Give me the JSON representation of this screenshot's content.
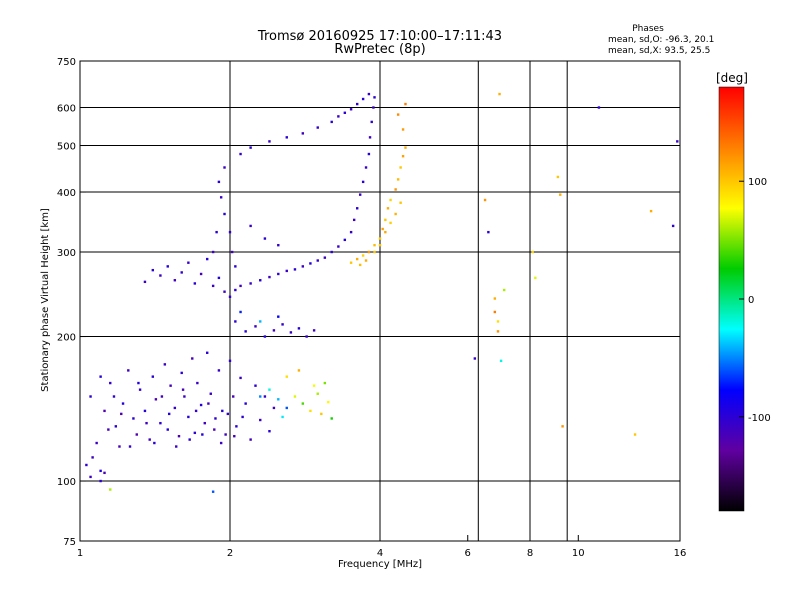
{
  "chart_data": {
    "type": "scatter",
    "title_line1": "Tromsø 20160925 17:10:00–17:11:43",
    "title_line2": "RwPretec (8p)",
    "stats": {
      "heading": "Phases",
      "line_o": "mean, sd,O: -96.3, 20.1",
      "line_x": "mean, sd,X:  93.5, 25.5"
    },
    "xlabel": "Frequency [MHz]",
    "ylabel": "Stationary phase Virtual Height [km]",
    "x_scale": "log",
    "y_scale": "log",
    "xlim": [
      1,
      16
    ],
    "ylim": [
      75,
      750
    ],
    "x_ticks": [
      1,
      2,
      4,
      6,
      8,
      10,
      16
    ],
    "x_tick_labels": [
      "1",
      "2",
      "4",
      "6",
      "8",
      "10",
      "16"
    ],
    "x_grid": [
      2,
      4,
      6.3,
      8,
      9.5
    ],
    "y_ticks": [
      75,
      100,
      200,
      300,
      400,
      500,
      600,
      750
    ],
    "y_tick_labels": [
      "75",
      "100",
      "200",
      "300",
      "400",
      "500",
      "600",
      "750"
    ],
    "y_grid": [
      100,
      200,
      300,
      400,
      500,
      600
    ],
    "grid": true,
    "colorbar": {
      "label": "[deg]",
      "range": [
        -180,
        180
      ],
      "ticks": [
        100,
        0,
        -100
      ],
      "tick_labels": [
        "100",
        "0",
        "-100"
      ],
      "colors": [
        "#ff0000",
        "#ff8000",
        "#ffff00",
        "#00cc00",
        "#00ffff",
        "#0000ff",
        "#6000a0",
        "#000000"
      ]
    },
    "series": [
      {
        "points": [
          [
            1.05,
            150,
            -100
          ],
          [
            1.08,
            120,
            -110
          ],
          [
            1.1,
            105,
            -95
          ],
          [
            1.12,
            140,
            -120
          ],
          [
            1.15,
            160,
            -105
          ],
          [
            1.18,
            130,
            -100
          ],
          [
            1.2,
            118,
            -115
          ],
          [
            1.22,
            145,
            -95
          ],
          [
            1.25,
            170,
            -110
          ],
          [
            1.28,
            135,
            -100
          ],
          [
            1.3,
            125,
            -120
          ],
          [
            1.32,
            155,
            -105
          ],
          [
            1.35,
            140,
            -98
          ],
          [
            1.38,
            122,
            -112
          ],
          [
            1.4,
            165,
            -100
          ],
          [
            1.42,
            148,
            -118
          ],
          [
            1.45,
            132,
            -102
          ],
          [
            1.48,
            175,
            -108
          ],
          [
            1.5,
            128,
            -96
          ],
          [
            1.52,
            158,
            -112
          ],
          [
            1.55,
            142,
            -104
          ],
          [
            1.58,
            124,
            -118
          ],
          [
            1.6,
            168,
            -100
          ],
          [
            1.62,
            150,
            -110
          ],
          [
            1.65,
            136,
            -96
          ],
          [
            1.68,
            180,
            -115
          ],
          [
            1.7,
            126,
            -102
          ],
          [
            1.72,
            160,
            -108
          ],
          [
            1.75,
            144,
            -98
          ],
          [
            1.78,
            132,
            -112
          ],
          [
            1.8,
            185,
            -100
          ],
          [
            1.83,
            152,
            -106
          ],
          [
            1.86,
            128,
            -118
          ],
          [
            1.9,
            170,
            -104
          ],
          [
            1.93,
            140,
            -96
          ],
          [
            1.96,
            125,
            -110
          ],
          [
            2.0,
            178,
            -102
          ],
          [
            2.03,
            150,
            -114
          ],
          [
            2.06,
            130,
            -100
          ],
          [
            2.1,
            164,
            -108
          ],
          [
            2.15,
            145,
            -96
          ],
          [
            2.2,
            122,
            -112
          ],
          [
            2.25,
            158,
            -100
          ],
          [
            2.3,
            134,
            -110
          ],
          [
            2.35,
            150,
            -104
          ],
          [
            2.4,
            127,
            -98
          ],
          [
            2.45,
            142,
            -112
          ],
          [
            1.03,
            108,
            -100
          ],
          [
            1.06,
            112,
            -108
          ],
          [
            1.1,
            165,
            -96
          ],
          [
            1.14,
            128,
            -114
          ],
          [
            1.17,
            150,
            -102
          ],
          [
            1.21,
            138,
            -118
          ],
          [
            1.26,
            118,
            -104
          ],
          [
            1.31,
            160,
            -96
          ],
          [
            1.36,
            132,
            -110
          ],
          [
            1.41,
            120,
            -100
          ],
          [
            1.46,
            150,
            -112
          ],
          [
            1.51,
            138,
            -98
          ],
          [
            1.56,
            118,
            -108
          ],
          [
            1.61,
            155,
            -116
          ],
          [
            1.66,
            122,
            -100
          ],
          [
            1.71,
            140,
            -106
          ],
          [
            1.76,
            125,
            -96
          ],
          [
            1.81,
            145,
            -112
          ],
          [
            1.87,
            135,
            -100
          ],
          [
            1.92,
            120,
            -108
          ],
          [
            1.98,
            138,
            -104
          ],
          [
            2.04,
            124,
            -114
          ],
          [
            2.12,
            136,
            -100
          ]
        ]
      },
      {
        "points": [
          [
            1.35,
            260,
            -110
          ],
          [
            1.4,
            275,
            -100
          ],
          [
            1.45,
            268,
            -108
          ],
          [
            1.5,
            280,
            -96
          ],
          [
            1.55,
            262,
            -112
          ],
          [
            1.6,
            272,
            -102
          ],
          [
            1.65,
            285,
            -106
          ],
          [
            1.7,
            258,
            -98
          ],
          [
            1.75,
            270,
            -114
          ],
          [
            1.8,
            290,
            -100
          ],
          [
            1.85,
            255,
            -108
          ],
          [
            1.9,
            265,
            -96
          ],
          [
            1.95,
            248,
            -110
          ],
          [
            2.0,
            242,
            -104
          ],
          [
            2.05,
            250,
            -100
          ],
          [
            2.1,
            255,
            -112
          ],
          [
            2.2,
            258,
            -106
          ],
          [
            2.3,
            262,
            -98
          ],
          [
            2.4,
            266,
            -110
          ],
          [
            2.5,
            270,
            -102
          ],
          [
            2.6,
            274,
            -106
          ],
          [
            2.7,
            276,
            -100
          ],
          [
            2.8,
            280,
            -108
          ],
          [
            2.9,
            284,
            -96
          ],
          [
            3.0,
            288,
            -104
          ],
          [
            3.1,
            292,
            -110
          ],
          [
            3.2,
            300,
            -100
          ],
          [
            3.3,
            308,
            -106
          ],
          [
            3.4,
            318,
            -98
          ],
          [
            3.5,
            330,
            -104
          ],
          [
            3.55,
            350,
            -110
          ],
          [
            3.6,
            370,
            -102
          ],
          [
            3.65,
            395,
            -108
          ],
          [
            3.7,
            420,
            -100
          ],
          [
            3.75,
            450,
            -106
          ],
          [
            3.8,
            480,
            -98
          ],
          [
            3.82,
            520,
            -110
          ],
          [
            3.85,
            560,
            -102
          ],
          [
            3.88,
            600,
            -108
          ],
          [
            3.9,
            630,
            -100
          ],
          [
            3.8,
            640,
            -106
          ],
          [
            3.7,
            625,
            -98
          ],
          [
            3.6,
            610,
            -104
          ],
          [
            3.5,
            595,
            -110
          ],
          [
            3.4,
            585,
            -100
          ],
          [
            3.3,
            575,
            -106
          ],
          [
            3.2,
            560,
            -98
          ],
          [
            3.0,
            545,
            -104
          ],
          [
            2.8,
            530,
            -110
          ],
          [
            2.6,
            520,
            -100
          ],
          [
            2.4,
            510,
            -106
          ],
          [
            2.2,
            495,
            -98
          ],
          [
            2.1,
            480,
            -104
          ],
          [
            1.95,
            450,
            -108
          ],
          [
            1.9,
            420,
            -100
          ],
          [
            1.92,
            390,
            -106
          ],
          [
            1.95,
            360,
            -98
          ],
          [
            2.0,
            330,
            -104
          ],
          [
            2.02,
            300,
            -110
          ],
          [
            2.05,
            280,
            -100
          ],
          [
            1.85,
            300,
            -108
          ],
          [
            1.88,
            330,
            -100
          ],
          [
            2.2,
            340,
            -106
          ],
          [
            2.35,
            320,
            -100
          ],
          [
            2.5,
            310,
            -104
          ]
        ]
      },
      {
        "points": [
          [
            3.5,
            285,
            100
          ],
          [
            3.6,
            290,
            110
          ],
          [
            3.7,
            295,
            95
          ],
          [
            3.8,
            300,
            120
          ],
          [
            3.9,
            310,
            105
          ],
          [
            4.0,
            320,
            100
          ],
          [
            4.05,
            335,
            115
          ],
          [
            4.1,
            350,
            100
          ],
          [
            4.15,
            370,
            110
          ],
          [
            4.2,
            385,
            95
          ],
          [
            4.3,
            405,
            120
          ],
          [
            4.35,
            425,
            105
          ],
          [
            4.4,
            450,
            100
          ],
          [
            4.45,
            475,
            115
          ],
          [
            4.5,
            495,
            110
          ],
          [
            4.4,
            380,
            100
          ],
          [
            4.3,
            360,
            108
          ],
          [
            4.2,
            345,
            96
          ],
          [
            4.1,
            330,
            112
          ],
          [
            4.0,
            310,
            102
          ],
          [
            3.9,
            300,
            98
          ],
          [
            3.75,
            288,
            110
          ],
          [
            3.65,
            282,
            104
          ],
          [
            4.45,
            540,
            118
          ],
          [
            4.5,
            610,
            130
          ],
          [
            4.35,
            580,
            125
          ]
        ]
      },
      {
        "points": [
          [
            2.7,
            150,
            70
          ],
          [
            2.8,
            145,
            40
          ],
          [
            2.9,
            140,
            90
          ],
          [
            3.0,
            152,
            60
          ],
          [
            3.05,
            138,
            100
          ],
          [
            3.1,
            160,
            50
          ],
          [
            3.15,
            146,
            80
          ],
          [
            3.2,
            135,
            30
          ],
          [
            2.6,
            142,
            -60
          ],
          [
            2.5,
            148,
            -40
          ],
          [
            2.4,
            155,
            -20
          ],
          [
            2.3,
            150,
            -50
          ],
          [
            2.6,
            165,
            90
          ],
          [
            2.75,
            170,
            110
          ],
          [
            2.95,
            158,
            75
          ],
          [
            2.55,
            136,
            -30
          ]
        ]
      },
      {
        "points": [
          [
            2.05,
            215,
            -100
          ],
          [
            2.15,
            205,
            -98
          ],
          [
            2.25,
            210,
            -108
          ],
          [
            2.35,
            200,
            -96
          ],
          [
            2.45,
            206,
            -110
          ],
          [
            2.55,
            212,
            -102
          ],
          [
            2.65,
            204,
            -106
          ],
          [
            2.75,
            208,
            -98
          ],
          [
            2.85,
            200,
            -104
          ],
          [
            2.95,
            206,
            -110
          ],
          [
            2.1,
            225,
            -70
          ],
          [
            2.3,
            215,
            -40
          ],
          [
            2.5,
            220,
            -80
          ]
        ]
      },
      {
        "points": [
          [
            6.5,
            385,
            120
          ],
          [
            6.6,
            330,
            -100
          ],
          [
            6.8,
            240,
            110
          ],
          [
            6.8,
            225,
            130
          ],
          [
            6.9,
            215,
            90
          ],
          [
            6.9,
            205,
            120
          ],
          [
            6.95,
            640,
            110
          ],
          [
            7.1,
            250,
            60
          ],
          [
            8.1,
            300,
            95
          ],
          [
            8.2,
            265,
            70
          ],
          [
            9.1,
            430,
            100
          ],
          [
            9.2,
            395,
            110
          ],
          [
            9.3,
            130,
            120
          ],
          [
            11.0,
            600,
            -100
          ],
          [
            13.0,
            125,
            100
          ],
          [
            14.0,
            365,
            110
          ],
          [
            15.5,
            340,
            -100
          ],
          [
            15.8,
            510,
            -105
          ],
          [
            6.2,
            180,
            -105
          ],
          [
            7.0,
            178,
            -20
          ]
        ]
      },
      {
        "points": [
          [
            1.15,
            96,
            60
          ],
          [
            1.85,
            95,
            -60
          ],
          [
            1.05,
            102,
            -110
          ],
          [
            1.1,
            100,
            -100
          ],
          [
            1.12,
            104,
            -115
          ]
        ]
      }
    ]
  }
}
